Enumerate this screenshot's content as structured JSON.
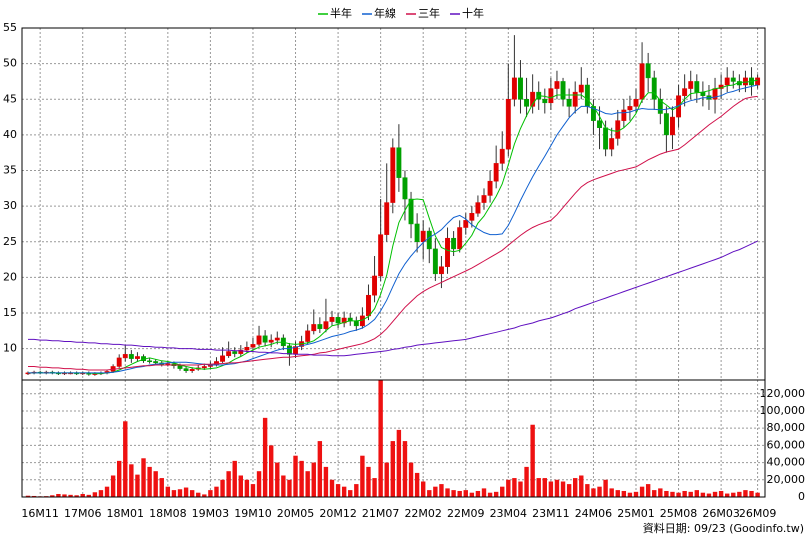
{
  "chart_data": {
    "type": "candlestick",
    "categories": [
      null,
      null,
      "16M11",
      null,
      null,
      null,
      null,
      null,
      null,
      "17M06",
      null,
      null,
      null,
      null,
      null,
      null,
      "18M01",
      null,
      null,
      null,
      null,
      null,
      null,
      "18M08",
      null,
      null,
      null,
      null,
      null,
      null,
      "19M03",
      null,
      null,
      null,
      null,
      null,
      null,
      "19M10",
      null,
      null,
      null,
      null,
      null,
      null,
      "20M05",
      null,
      null,
      null,
      null,
      null,
      null,
      "20M12",
      null,
      null,
      null,
      null,
      null,
      null,
      "21M07",
      null,
      null,
      null,
      null,
      null,
      null,
      "22M02",
      null,
      null,
      null,
      null,
      null,
      null,
      "22M09",
      null,
      null,
      null,
      null,
      null,
      null,
      "23M04",
      null,
      null,
      null,
      null,
      null,
      null,
      "23M11",
      null,
      null,
      null,
      null,
      null,
      null,
      "24M06",
      null,
      null,
      null,
      null,
      null,
      null,
      "25M01",
      null,
      null,
      null,
      null,
      null,
      null,
      "25M08",
      null,
      null,
      null,
      null,
      null,
      null,
      "26M03",
      null,
      null,
      null,
      null,
      null,
      "26M09"
    ],
    "open": [
      6.5,
      6.6,
      6.7,
      6.6,
      6.7,
      6.6,
      6.5,
      6.6,
      6.6,
      6.5,
      6.6,
      6.4,
      6.5,
      6.6,
      6.8,
      7.5,
      8.7,
      9.2,
      8.6,
      8.9,
      8.3,
      8.2,
      8.0,
      7.8,
      7.9,
      7.6,
      7.2,
      6.9,
      7.1,
      7.3,
      7.5,
      7.8,
      8.2,
      9.0,
      9.6,
      9.3,
      9.8,
      10.2,
      10.6,
      11.8,
      10.9,
      11.2,
      11.5,
      10.4,
      9.2,
      10.3,
      11.0,
      12.5,
      13.4,
      12.8,
      13.8,
      14.4,
      13.6,
      14.3,
      13.9,
      13.2,
      14.6,
      17.5,
      20.2,
      26.0,
      30.5,
      38.2,
      34.0,
      31.0,
      27.5,
      25.0,
      26.5,
      24.0,
      20.5,
      21.5,
      25.5,
      24.0,
      27.0,
      28.0,
      29.0,
      30.5,
      31.5,
      33.5,
      36.0,
      38.0,
      45.0,
      48.0,
      45.0,
      44.0,
      46.0,
      45.0,
      44.5,
      46.5,
      47.5,
      45.0,
      44.0,
      46.0,
      47.0,
      44.0,
      42.0,
      41.0,
      38.0,
      39.5,
      42.0,
      43.5,
      44.0,
      45.0,
      50.0,
      48.0,
      45.0,
      43.0,
      40.0,
      42.5,
      45.5,
      46.5,
      47.5,
      46.0,
      45.5,
      45.0,
      46.5,
      47.0,
      48.0,
      47.5,
      47.0,
      48.0,
      47.0
    ],
    "high": [
      6.8,
      6.9,
      6.9,
      6.9,
      6.9,
      6.8,
      6.8,
      6.8,
      6.8,
      6.8,
      6.8,
      6.7,
      6.8,
      7.0,
      7.8,
      9.2,
      10.5,
      9.8,
      9.5,
      9.2,
      8.7,
      8.5,
      8.3,
      8.2,
      8.2,
      7.9,
      7.5,
      7.4,
      7.7,
      7.9,
      8.2,
      8.8,
      10.2,
      11.0,
      10.2,
      10.5,
      11.0,
      11.5,
      13.2,
      12.6,
      12.0,
      12.4,
      12.0,
      10.8,
      11.0,
      11.8,
      13.4,
      15.5,
      14.4,
      17.0,
      15.3,
      15.0,
      15.2,
      15.0,
      14.5,
      15.8,
      19.0,
      23.0,
      31.0,
      36.0,
      39.5,
      41.5,
      35.0,
      32.0,
      29.0,
      28.0,
      27.0,
      25.5,
      23.0,
      27.0,
      26.5,
      28.0,
      29.0,
      30.0,
      31.5,
      32.5,
      35.0,
      38.5,
      40.5,
      50.0,
      54.0,
      50.5,
      48.0,
      48.5,
      47.5,
      46.5,
      48.0,
      49.0,
      48.0,
      46.5,
      47.5,
      49.5,
      48.0,
      45.0,
      44.0,
      42.0,
      41.0,
      43.5,
      45.0,
      45.5,
      46.5,
      53.0,
      51.5,
      49.0,
      46.5,
      44.0,
      44.0,
      47.0,
      48.5,
      49.0,
      48.5,
      47.5,
      47.0,
      48.0,
      48.5,
      49.5,
      49.0,
      48.5,
      49.0,
      49.5,
      48.5
    ],
    "low": [
      6.3,
      6.4,
      6.4,
      6.4,
      6.4,
      6.3,
      6.3,
      6.4,
      6.3,
      6.3,
      6.2,
      6.2,
      6.3,
      6.4,
      6.6,
      7.3,
      8.2,
      8.0,
      8.2,
      8.0,
      7.9,
      7.7,
      7.5,
      7.5,
      7.2,
      6.9,
      6.6,
      6.6,
      6.9,
      7.0,
      7.2,
      7.5,
      8.0,
      8.7,
      8.8,
      8.9,
      9.4,
      9.7,
      10.3,
      10.3,
      10.2,
      10.6,
      9.8,
      7.6,
      8.7,
      9.8,
      10.6,
      12.0,
      12.2,
      12.3,
      13.2,
      12.9,
      13.0,
      13.2,
      12.5,
      12.8,
      14.0,
      16.5,
      19.5,
      25.0,
      29.0,
      32.0,
      28.0,
      25.5,
      23.5,
      22.5,
      22.0,
      19.5,
      18.5,
      20.5,
      23.0,
      23.5,
      26.0,
      27.0,
      28.5,
      29.5,
      30.5,
      32.5,
      35.0,
      37.0,
      44.0,
      43.0,
      42.5,
      43.0,
      43.5,
      43.0,
      43.5,
      45.0,
      44.0,
      42.5,
      43.0,
      45.0,
      43.0,
      40.0,
      38.0,
      37.0,
      37.0,
      38.5,
      41.0,
      42.0,
      43.0,
      44.5,
      46.0,
      43.5,
      41.5,
      37.5,
      38.0,
      41.0,
      44.0,
      45.0,
      44.5,
      44.0,
      43.5,
      43.0,
      45.0,
      46.0,
      46.5,
      46.0,
      46.0,
      45.5,
      46.5
    ],
    "close": [
      6.6,
      6.7,
      6.6,
      6.7,
      6.6,
      6.5,
      6.6,
      6.6,
      6.5,
      6.6,
      6.4,
      6.5,
      6.6,
      6.8,
      7.5,
      8.7,
      9.2,
      8.6,
      8.9,
      8.3,
      8.2,
      8.0,
      7.8,
      7.9,
      7.6,
      7.2,
      6.9,
      7.1,
      7.3,
      7.5,
      7.8,
      8.2,
      9.0,
      9.6,
      9.3,
      9.8,
      10.2,
      10.6,
      11.8,
      10.9,
      11.2,
      11.5,
      10.4,
      9.2,
      10.3,
      11.0,
      12.5,
      13.4,
      12.8,
      13.8,
      14.4,
      13.6,
      14.3,
      13.9,
      13.2,
      14.6,
      17.5,
      20.2,
      26.0,
      30.5,
      38.2,
      34.0,
      31.0,
      27.5,
      25.0,
      26.5,
      24.0,
      20.5,
      21.5,
      25.5,
      24.0,
      27.0,
      28.0,
      29.0,
      30.5,
      31.5,
      33.5,
      36.0,
      38.0,
      45.0,
      48.0,
      45.0,
      44.0,
      46.0,
      45.0,
      44.5,
      46.5,
      47.5,
      45.0,
      44.0,
      46.0,
      47.0,
      44.0,
      42.0,
      41.0,
      38.0,
      39.5,
      42.0,
      43.5,
      44.0,
      45.0,
      50.0,
      48.0,
      45.0,
      43.0,
      40.0,
      42.5,
      45.5,
      46.5,
      47.5,
      46.0,
      45.5,
      45.0,
      46.5,
      47.0,
      48.0,
      47.5,
      47.0,
      48.0,
      47.0,
      48.0
    ],
    "up_color": "#e00000",
    "down_color": "#00a000",
    "series": [
      {
        "name": "半年",
        "color": "#00c000",
        "values": [
          6.6,
          6.6,
          6.6,
          6.6,
          6.6,
          6.6,
          6.6,
          6.6,
          6.6,
          6.6,
          6.6,
          6.5,
          6.5,
          6.6,
          6.7,
          7.0,
          7.4,
          7.8,
          8.2,
          8.5,
          8.7,
          8.5,
          8.3,
          8.2,
          8.0,
          7.7,
          7.5,
          7.3,
          7.2,
          7.1,
          7.2,
          7.3,
          7.6,
          8.0,
          8.5,
          8.9,
          9.4,
          9.8,
          10.2,
          10.4,
          10.6,
          10.9,
          10.9,
          10.7,
          10.6,
          10.7,
          10.8,
          11.1,
          11.7,
          12.5,
          13.2,
          13.4,
          13.7,
          13.9,
          13.9,
          14.0,
          14.5,
          15.6,
          17.6,
          20.3,
          24.4,
          27.7,
          29.4,
          30.9,
          31.0,
          30.9,
          28.3,
          25.8,
          24.2,
          23.8,
          23.6,
          23.8,
          24.8,
          25.9,
          27.6,
          28.6,
          30.0,
          31.4,
          33.1,
          35.8,
          38.7,
          40.9,
          42.7,
          44.3,
          45.5,
          45.4,
          45.2,
          45.6,
          45.6,
          45.6,
          45.6,
          45.6,
          45.0,
          44.0,
          42.6,
          41.0,
          40.6,
          40.5,
          41.0,
          41.8,
          43.0,
          44.9,
          45.9,
          45.9,
          44.8,
          44.2,
          43.5,
          44.0,
          45.0,
          45.8,
          45.9,
          46.0,
          46.2,
          46.5,
          46.6,
          46.9,
          47.0,
          47.4,
          47.4,
          47.5,
          47.7
        ]
      },
      {
        "name": "年線",
        "color": "#1060d0",
        "values": [
          6.6,
          6.6,
          6.6,
          6.6,
          6.6,
          6.6,
          6.6,
          6.6,
          6.6,
          6.6,
          6.6,
          6.6,
          6.6,
          6.6,
          6.7,
          6.8,
          7.0,
          7.2,
          7.4,
          7.5,
          7.7,
          7.8,
          7.9,
          8.0,
          8.1,
          8.1,
          8.1,
          8.0,
          7.9,
          7.8,
          7.7,
          7.7,
          7.7,
          7.8,
          7.9,
          8.1,
          8.3,
          8.6,
          8.9,
          9.2,
          9.5,
          9.8,
          10.0,
          10.0,
          10.2,
          10.4,
          10.6,
          10.8,
          11.1,
          11.4,
          11.7,
          11.9,
          12.1,
          12.4,
          12.6,
          12.9,
          13.4,
          14.1,
          15.3,
          16.8,
          18.7,
          20.5,
          21.9,
          23.0,
          24.0,
          24.9,
          25.6,
          26.1,
          26.7,
          27.6,
          28.4,
          28.7,
          28.2,
          27.4,
          26.8,
          26.3,
          26.0,
          26.0,
          26.1,
          27.3,
          29.0,
          30.8,
          32.5,
          34.1,
          35.6,
          37.0,
          38.5,
          40.0,
          41.2,
          42.4,
          43.3,
          44.0,
          44.0,
          43.7,
          43.4,
          43.0,
          42.9,
          43.1,
          43.1,
          43.2,
          43.5,
          43.7,
          43.6,
          43.6,
          43.5,
          43.6,
          43.8,
          44.1,
          44.5,
          44.8,
          45.0,
          45.2,
          45.2,
          45.3,
          45.5,
          45.9,
          46.1,
          46.4,
          46.6,
          46.8,
          47.0
        ]
      },
      {
        "name": "三年",
        "color": "#d0104a",
        "values": [
          7.5,
          7.5,
          7.4,
          7.4,
          7.3,
          7.3,
          7.2,
          7.2,
          7.1,
          7.1,
          7.0,
          7.0,
          7.0,
          7.0,
          7.1,
          7.2,
          7.3,
          7.4,
          7.5,
          7.6,
          7.6,
          7.7,
          7.7,
          7.7,
          7.7,
          7.7,
          7.7,
          7.7,
          7.7,
          7.8,
          7.8,
          7.9,
          7.9,
          8.0,
          8.0,
          8.1,
          8.2,
          8.3,
          8.4,
          8.5,
          8.6,
          8.7,
          8.8,
          8.8,
          8.9,
          9.0,
          9.1,
          9.2,
          9.4,
          9.5,
          9.7,
          9.9,
          10.1,
          10.3,
          10.5,
          10.7,
          11.0,
          11.4,
          12.0,
          12.8,
          13.8,
          14.8,
          15.8,
          16.6,
          17.4,
          18.0,
          18.5,
          18.9,
          19.3,
          19.7,
          20.1,
          20.5,
          20.9,
          21.3,
          21.8,
          22.3,
          22.8,
          23.3,
          23.8,
          24.5,
          25.2,
          25.9,
          26.5,
          27.0,
          27.4,
          27.7,
          28.0,
          28.8,
          29.8,
          30.8,
          31.8,
          32.7,
          33.3,
          33.7,
          34.0,
          34.3,
          34.6,
          34.9,
          35.1,
          35.3,
          35.5,
          36.0,
          36.5,
          36.9,
          37.3,
          37.6,
          37.8,
          38.0,
          38.6,
          39.3,
          40.0,
          40.7,
          41.4,
          42.0,
          42.6,
          43.3,
          44.0,
          44.6,
          45.1,
          45.3,
          45.4
        ]
      },
      {
        "name": "十年",
        "color": "#6010c0",
        "values": [
          11.3,
          11.3,
          11.2,
          11.2,
          11.1,
          11.1,
          11.0,
          11.0,
          10.9,
          10.9,
          10.8,
          10.8,
          10.7,
          10.7,
          10.6,
          10.6,
          10.5,
          10.5,
          10.4,
          10.3,
          10.3,
          10.2,
          10.2,
          10.1,
          10.1,
          10.0,
          10.0,
          10.0,
          9.9,
          9.9,
          9.9,
          9.8,
          9.8,
          9.8,
          9.7,
          9.7,
          9.6,
          9.6,
          9.5,
          9.5,
          9.4,
          9.4,
          9.3,
          9.3,
          9.2,
          9.2,
          9.2,
          9.1,
          9.1,
          9.1,
          9.0,
          9.0,
          9.0,
          9.1,
          9.2,
          9.3,
          9.4,
          9.5,
          9.6,
          9.7,
          9.9,
          10.0,
          10.2,
          10.3,
          10.5,
          10.6,
          10.7,
          10.8,
          10.9,
          11.0,
          11.1,
          11.2,
          11.3,
          11.5,
          11.7,
          11.9,
          12.1,
          12.3,
          12.5,
          12.7,
          12.9,
          13.2,
          13.4,
          13.6,
          13.9,
          14.1,
          14.3,
          14.6,
          14.9,
          15.2,
          15.6,
          15.9,
          16.2,
          16.5,
          16.8,
          17.1,
          17.4,
          17.7,
          18.0,
          18.3,
          18.6,
          18.9,
          19.2,
          19.5,
          19.8,
          20.1,
          20.4,
          20.7,
          21.0,
          21.3,
          21.6,
          21.9,
          22.2,
          22.5,
          22.8,
          23.2,
          23.6,
          23.9,
          24.3,
          24.7,
          25.1
        ]
      }
    ],
    "ylim": [
      5.6,
      55
    ],
    "yticks": [
      10,
      15,
      20,
      25,
      30,
      35,
      40,
      45,
      50,
      55
    ],
    "grid": true,
    "volume": {
      "color": "#ee1111",
      "values": [
        1500,
        1200,
        800,
        1000,
        2000,
        3500,
        3000,
        2500,
        2000,
        3500,
        2500,
        5500,
        8000,
        12000,
        25000,
        42000,
        88000,
        38000,
        26000,
        45000,
        35000,
        30000,
        22000,
        12000,
        8000,
        9000,
        11000,
        8000,
        5000,
        3000,
        8000,
        12000,
        20000,
        30000,
        42000,
        25000,
        20000,
        15000,
        30000,
        92000,
        60000,
        40000,
        25000,
        20000,
        48000,
        42000,
        30000,
        40000,
        65000,
        35000,
        20000,
        15000,
        12000,
        8000,
        15000,
        48000,
        35000,
        22000,
        136000,
        40000,
        65000,
        78000,
        65000,
        40000,
        28000,
        18000,
        8000,
        12000,
        15000,
        10000,
        8000,
        7000,
        8000,
        5000,
        7000,
        10000,
        5000,
        6000,
        12000,
        20000,
        22000,
        18000,
        35000,
        84000,
        22000,
        22000,
        18000,
        20000,
        18000,
        15000,
        22000,
        25000,
        15000,
        10000,
        12000,
        20000,
        10000,
        8000,
        7000,
        5000,
        6000,
        12000,
        15000,
        8000,
        10000,
        7000,
        6000,
        5000,
        7000,
        6000,
        8000,
        5000,
        4000,
        6000,
        7000,
        4000,
        5000,
        6000,
        8000,
        7000,
        5000
      ],
      "ylim": [
        0,
        136000
      ],
      "yticks": [
        0,
        {
          "value": 20000,
          "label": "20,000"
        },
        {
          "value": 40000,
          "label": "40,000"
        },
        {
          "value": 60000,
          "label": "60,000"
        },
        {
          "value": 80000,
          "label": "80,000"
        },
        {
          "value": 100000,
          "label": "100,000"
        },
        {
          "value": 120000,
          "label": "120,000"
        }
      ]
    },
    "footnote": "資料日期: 09/23 (Goodinfo.tw)"
  }
}
